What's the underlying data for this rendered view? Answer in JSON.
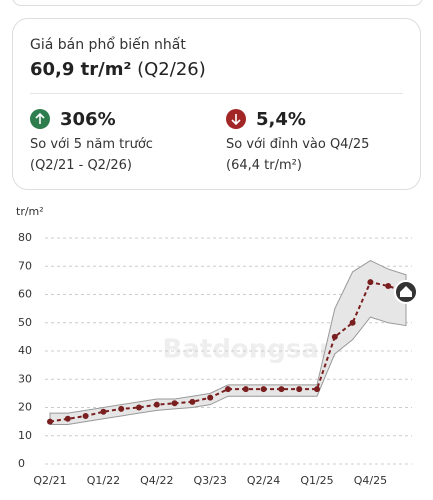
{
  "card": {
    "title": "Giá bán phổ biến nhất",
    "price": "60,9 tr/m²",
    "period": "(Q2/26)",
    "stats": [
      {
        "value": "306%",
        "caption": "So với 5 năm trước",
        "detail": "(Q2/21 - Q2/26)",
        "direction": "up",
        "color": "#2e7d4f"
      },
      {
        "value": "5,4%",
        "caption": "So với đỉnh vào Q4/25",
        "detail": "(64,4 tr/m²)",
        "direction": "down",
        "color": "#a32626"
      }
    ]
  },
  "chart_data": {
    "type": "line",
    "y_unit": "tr/m²",
    "watermark": "Batdongsan",
    "categories": [
      "Q2/21",
      null,
      null,
      "Q1/22",
      null,
      null,
      "Q4/22",
      null,
      null,
      "Q3/23",
      null,
      null,
      "Q2/24",
      null,
      null,
      "Q1/25",
      null,
      null,
      "Q4/25",
      null,
      null
    ],
    "values": [
      15,
      16,
      17,
      18.5,
      19.5,
      20,
      21,
      21.5,
      22,
      23.5,
      26.5,
      26.5,
      26.5,
      26.5,
      26.5,
      26.5,
      45,
      50,
      64.4,
      63,
      60.9
    ],
    "band_upper": [
      18,
      18,
      19,
      20,
      21,
      22,
      23,
      23,
      24,
      25,
      28,
      28,
      28,
      28,
      28,
      28,
      55,
      68,
      72,
      69,
      67
    ],
    "band_lower": [
      14,
      14,
      15,
      16,
      17,
      18,
      19,
      19.5,
      20,
      21,
      24,
      24,
      24,
      24,
      24,
      24,
      39,
      44,
      52,
      50,
      49
    ],
    "color": "#7a1f1f",
    "band_color": "#e6e6e6",
    "ylim": [
      0,
      80
    ],
    "yticks": [
      0,
      10,
      20,
      30,
      40,
      50,
      60,
      70,
      80
    ],
    "grid": true
  }
}
